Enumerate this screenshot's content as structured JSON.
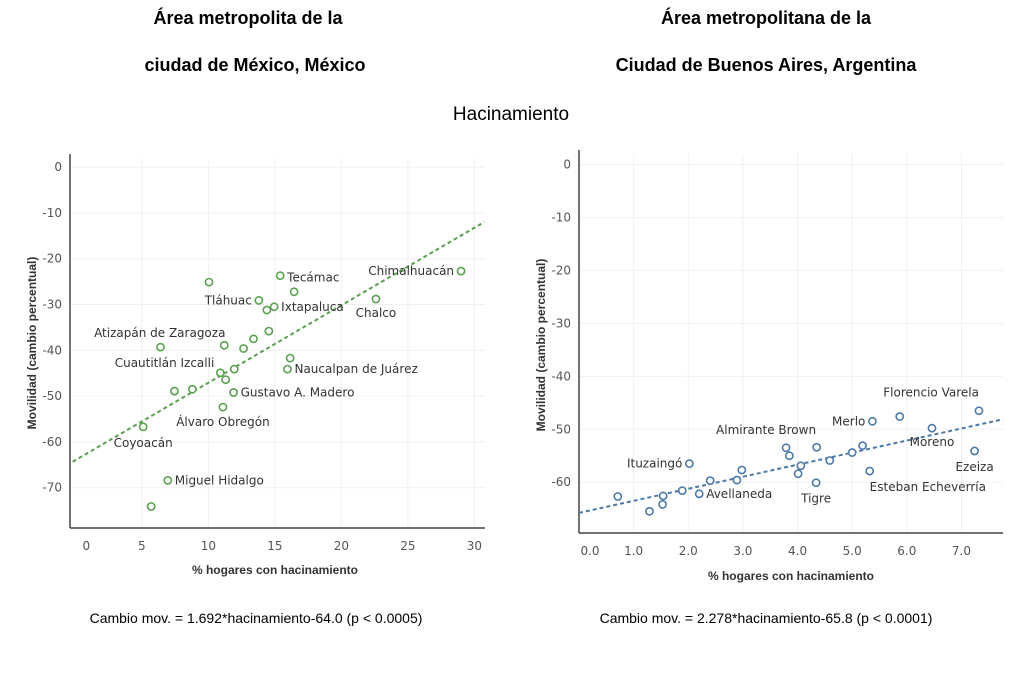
{
  "header": {
    "left_title_line1": "Área metropolita de la",
    "left_title_line2": "ciudad de México, México",
    "right_title_line1": "Área metropolitana de la",
    "right_title_line2": "Ciudad de Buenos Aires, Argentina",
    "subtitle": "Hacinamiento"
  },
  "chart_data": [
    {
      "type": "scatter",
      "title": "Área metropolita de la ciudad de México, México",
      "xlabel": "% hogares con hacinamiento",
      "ylabel": "Movilidad (cambio percentual)",
      "xlim": [
        -0.4,
        30.8
      ],
      "ylim": [
        -78.8,
        2
      ],
      "xticks": [
        0,
        5,
        10,
        15,
        20,
        25,
        30
      ],
      "xtick_labels": [
        "0",
        "5",
        "10",
        "15",
        "20",
        "25",
        "30"
      ],
      "yticks": [
        0,
        -10,
        -20,
        -30,
        -40,
        -50,
        -60,
        -70
      ],
      "ytick_labels": [
        "0",
        "-10",
        "-20",
        "-30",
        "-40",
        "-50",
        "-60",
        "-70"
      ],
      "grid": true,
      "color": "#59a14f",
      "trendline": {
        "slope": 1.692,
        "intercept": -64.0,
        "x_range": [
          -0.2,
          30.75
        ],
        "style": "dashed"
      },
      "equation": "Cambio mov. = 1.692*hacinamiento-64.0 (p < 0.0005)",
      "points": [
        {
          "x": 29.0,
          "y": -22.7,
          "label": "Chimalhuacán",
          "label_pos": "left"
        },
        {
          "x": 10.05,
          "y": -25.1
        },
        {
          "x": 15.4,
          "y": -23.7,
          "label": "Tecámac",
          "label_pos": "right"
        },
        {
          "x": 16.45,
          "y": -27.2
        },
        {
          "x": 13.8,
          "y": -29.1,
          "label": "Tláhuac",
          "label_pos": "left"
        },
        {
          "x": 14.4,
          "y": -31.2
        },
        {
          "x": 14.95,
          "y": -30.5,
          "label": "Ixtapaluca",
          "label_pos": "right"
        },
        {
          "x": 22.6,
          "y": -28.8,
          "label": "Chalco",
          "label_pos": "below"
        },
        {
          "x": 14.55,
          "y": -35.8
        },
        {
          "x": 13.4,
          "y": -37.5
        },
        {
          "x": 12.65,
          "y": -39.6
        },
        {
          "x": 11.2,
          "y": -38.9
        },
        {
          "x": 6.4,
          "y": -39.3,
          "label": "Atizapán de Zaragoza",
          "label_pos": "above-left"
        },
        {
          "x": 16.15,
          "y": -41.7
        },
        {
          "x": 15.95,
          "y": -44.1,
          "label": "Naucalpan de Juárez",
          "label_pos": "right"
        },
        {
          "x": 11.95,
          "y": -44.1
        },
        {
          "x": 10.9,
          "y": -44.9,
          "label": "Cuautitlán Izcalli",
          "label_pos": "above-left"
        },
        {
          "x": 11.3,
          "y": -46.4
        },
        {
          "x": 11.9,
          "y": -49.2,
          "label": "Gustavo A. Madero",
          "label_pos": "right"
        },
        {
          "x": 8.8,
          "y": -48.5
        },
        {
          "x": 7.45,
          "y": -48.9
        },
        {
          "x": 11.1,
          "y": -52.4,
          "label": "Álvaro Obregón",
          "label_pos": "below"
        },
        {
          "x": 5.1,
          "y": -56.7,
          "label": "Coyoacán",
          "label_pos": "below"
        },
        {
          "x": 6.95,
          "y": -68.4,
          "label": "Miguel Hidalgo",
          "label_pos": "right"
        },
        {
          "x": 5.7,
          "y": -74.1
        }
      ]
    },
    {
      "type": "scatter",
      "title": "Área metropolitana de la Ciudad de Buenos Aires, Argentina",
      "xlabel": "% hogares con hacinamiento",
      "ylabel": "Movilidad (cambio percentual)",
      "xlim": [
        0,
        7.76
      ],
      "ylim": [
        -69.6,
        2
      ],
      "xticks": [
        0,
        1,
        2,
        3,
        4,
        5,
        6,
        7
      ],
      "xtick_labels": [
        "0.0",
        "1.0",
        "2.0",
        "3.0",
        "4.0",
        "5.0",
        "6.0",
        "7.0"
      ],
      "yticks": [
        0,
        -10,
        -20,
        -30,
        -40,
        -50,
        -60
      ],
      "ytick_labels": [
        "0",
        "-10",
        "-20",
        "-30",
        "-40",
        "-50",
        "-60"
      ],
      "grid": true,
      "color": "#4e79a7",
      "trendline": {
        "slope": 2.278,
        "intercept": -65.8,
        "x_range": [
          0,
          7.76
        ],
        "style": "dashed"
      },
      "equation": "Cambio mov. = 2.278*hacinamiento-65.8 (p < 0.0001)",
      "points": [
        {
          "x": 0.71,
          "y": -62.7
        },
        {
          "x": 1.29,
          "y": -65.5
        },
        {
          "x": 1.54,
          "y": -62.6
        },
        {
          "x": 1.53,
          "y": -64.2
        },
        {
          "x": 1.89,
          "y": -61.6
        },
        {
          "x": 2.02,
          "y": -56.5,
          "label": "Ituzaingó",
          "label_pos": "left"
        },
        {
          "x": 2.2,
          "y": -62.2,
          "label": "Avellaneda",
          "label_pos": "right"
        },
        {
          "x": 2.4,
          "y": -59.7
        },
        {
          "x": 2.89,
          "y": -59.6
        },
        {
          "x": 2.98,
          "y": -57.7
        },
        {
          "x": 3.79,
          "y": -53.5,
          "label": "Almirante Brown",
          "label_pos": "above-left"
        },
        {
          "x": 3.85,
          "y": -55.0
        },
        {
          "x": 4.06,
          "y": -56.9
        },
        {
          "x": 4.01,
          "y": -58.4
        },
        {
          "x": 4.35,
          "y": -53.4
        },
        {
          "x": 4.34,
          "y": -60.1,
          "label": "Tigre",
          "label_pos": "below"
        },
        {
          "x": 4.59,
          "y": -55.9
        },
        {
          "x": 5.0,
          "y": -54.4
        },
        {
          "x": 5.19,
          "y": -53.1
        },
        {
          "x": 5.32,
          "y": -57.9,
          "label": "Esteban Echeverría",
          "label_pos": "below-right"
        },
        {
          "x": 5.37,
          "y": -48.5,
          "label": "Merlo",
          "label_pos": "left"
        },
        {
          "x": 5.87,
          "y": -47.6
        },
        {
          "x": 6.46,
          "y": -49.8,
          "label": "Moreno",
          "label_pos": "below"
        },
        {
          "x": 7.24,
          "y": -54.1,
          "label": "Ezeiza",
          "label_pos": "below"
        },
        {
          "x": 7.32,
          "y": -46.5,
          "label": "Florencio Varela",
          "label_pos": "above-left"
        }
      ]
    }
  ]
}
